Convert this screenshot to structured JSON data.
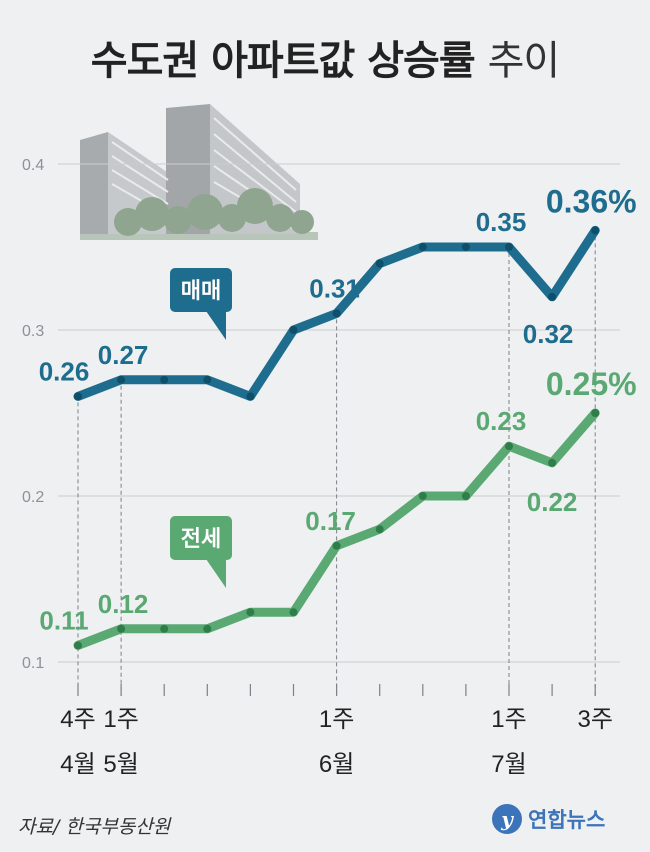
{
  "title": {
    "main": "수도권 아파트값 상승률",
    "suffix": "추이"
  },
  "source": "자료/ 한국부동산원",
  "logo": {
    "mark": "y",
    "text": "연합뉴스"
  },
  "chart_data": {
    "type": "line",
    "title": "수도권 아파트값 상승률 추이",
    "ylim": [
      0.1,
      0.4
    ],
    "yticks": [
      "0.1",
      "0.2",
      "0.3",
      "0.4"
    ],
    "grid": true,
    "x": [
      0,
      1,
      2,
      3,
      4,
      5,
      6,
      7,
      8,
      9,
      10,
      11,
      12
    ],
    "xtick_labels": [
      {
        "x": 0,
        "top": "4주",
        "bottom": "4월"
      },
      {
        "x": 1,
        "top": "1주",
        "bottom": "5월"
      },
      {
        "x": 6,
        "top": "1주",
        "bottom": "6월"
      },
      {
        "x": 10,
        "top": "1주",
        "bottom": "7월"
      },
      {
        "x": 12,
        "top": "3주",
        "bottom": ""
      }
    ],
    "series": [
      {
        "name": "매매",
        "color": "#1e6d8e",
        "values": [
          0.26,
          0.27,
          0.27,
          0.27,
          0.26,
          0.3,
          0.31,
          0.34,
          0.35,
          0.35,
          0.35,
          0.32,
          0.36
        ],
        "labels": [
          "0.26",
          "0.27",
          "",
          "",
          "",
          "",
          "0.31",
          "",
          "",
          "",
          "0.35",
          "0.32",
          "0.36%"
        ]
      },
      {
        "name": "전세",
        "color": "#5aa872",
        "values": [
          0.11,
          0.12,
          0.12,
          0.12,
          0.13,
          0.13,
          0.17,
          0.18,
          0.2,
          0.2,
          0.23,
          0.22,
          0.25
        ],
        "labels": [
          "0.11",
          "0.12",
          "",
          "",
          "",
          "",
          "0.17",
          "",
          "",
          "",
          "0.23",
          "0.22",
          "0.25%"
        ]
      }
    ]
  }
}
